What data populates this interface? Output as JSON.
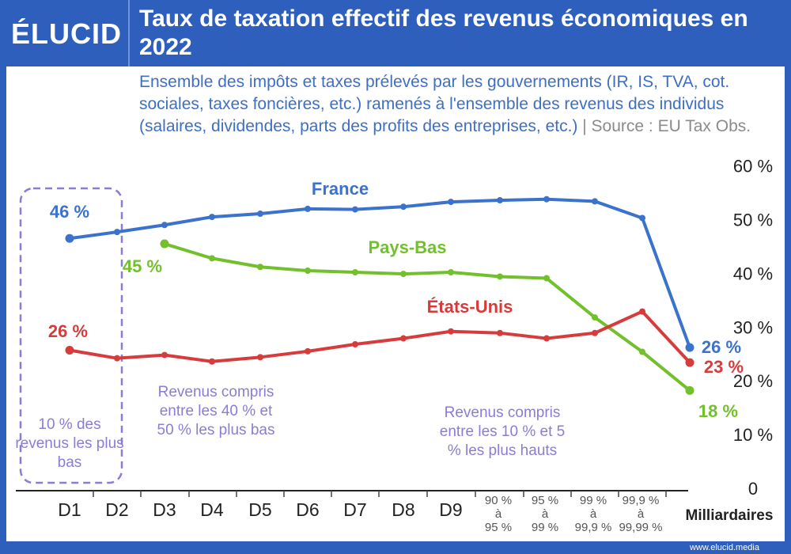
{
  "header": {
    "logo": "ÉLUCID",
    "title": "Taux de taxation effectif des revenus économiques en 2022",
    "subtitle": "Ensemble des impôts et taxes prélevés par les gouvernements (IR, IS, TVA, cot. sociales, taxes foncières, etc.) ramenés à l'ensemble des revenus des individus (salaires, dividendes, parts des profits des entreprises, etc.)",
    "source": "| Source : EU Tax Obs."
  },
  "footer": {
    "url": "www.elucid.media"
  },
  "annotations": {
    "low": "10 % des revenus les plus bas",
    "mid": "Revenus compris entre les 40 % et 50 % les plus bas",
    "high": "Revenus compris entre les 10 % et 5 % les plus hauts"
  },
  "colors": {
    "France": "#3a72cc",
    "Pays-Bas": "#72c02c",
    "États-Unis": "#d63c3c",
    "annotation": "#8a7dd6",
    "brand": "#2e5fbd"
  },
  "chart_data": {
    "type": "line",
    "categories": [
      "D1",
      "D2",
      "D3",
      "D4",
      "D5",
      "D6",
      "D7",
      "D8",
      "D9",
      "90 % à 95 %",
      "95 % à 99 %",
      "99 % à 99,9 %",
      "99,9 % à 99,99 %",
      "Milliardaires"
    ],
    "ylim": [
      0,
      60
    ],
    "yticks": [
      0,
      10,
      20,
      30,
      40,
      50,
      60
    ],
    "ytick_labels": [
      "0",
      "10 %",
      "20 %",
      "30 %",
      "40 %",
      "50 %",
      "60 %"
    ],
    "series": [
      {
        "name": "France",
        "values": [
          46.5,
          47.7,
          49.0,
          50.5,
          51.1,
          52.0,
          51.9,
          52.4,
          53.3,
          53.6,
          53.8,
          53.4,
          50.3,
          26.2
        ],
        "labels": {
          "0": "46 %",
          "13": "26 %"
        }
      },
      {
        "name": "Pays-Bas",
        "values": [
          null,
          null,
          45.5,
          42.8,
          41.2,
          40.5,
          40.2,
          39.9,
          40.2,
          39.4,
          39.1,
          31.8,
          25.4,
          18.2
        ],
        "labels": {
          "2": "45 %",
          "13": "18 %"
        }
      },
      {
        "name": "États-Unis",
        "values": [
          25.7,
          24.2,
          24.8,
          23.6,
          24.4,
          25.5,
          26.8,
          27.9,
          29.2,
          28.9,
          27.9,
          28.9,
          32.9,
          23.4
        ],
        "labels": {
          "0": "26 %",
          "13": "23 %"
        }
      }
    ]
  }
}
